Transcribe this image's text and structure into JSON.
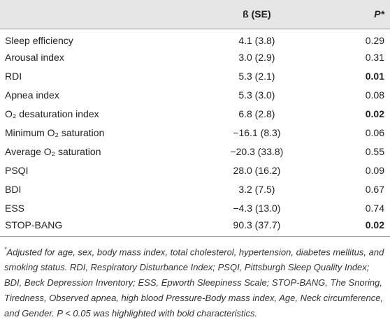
{
  "table": {
    "header": {
      "estimate": "ß (SE)",
      "p": "P*"
    },
    "rows": [
      {
        "label": "Sleep efficiency",
        "estimate": "4.1 (3.8)",
        "p": "0.29",
        "bold": false
      },
      {
        "label": "Arousal index",
        "estimate": "3.0 (2.9)",
        "p": "0.31",
        "bold": false
      },
      {
        "label": "RDI",
        "estimate": "5.3 (2.1)",
        "p": "0.01",
        "bold": true
      },
      {
        "label": "Apnea index",
        "estimate": "5.3 (3.0)",
        "p": "0.08",
        "bold": false
      },
      {
        "label": "O₂ desaturation index",
        "estimate": "6.8 (2.8)",
        "p": "0.02",
        "bold": true
      },
      {
        "label": "Minimum O₂ saturation",
        "estimate": "−16.1 (8.3)",
        "p": "0.06",
        "bold": false
      },
      {
        "label": "Average O₂ saturation",
        "estimate": "−20.3 (33.8)",
        "p": "0.55",
        "bold": false
      },
      {
        "label": "PSQI",
        "estimate": "28.0 (16.2)",
        "p": "0.09",
        "bold": false
      },
      {
        "label": "BDI",
        "estimate": "3.2 (7.5)",
        "p": "0.67",
        "bold": false
      },
      {
        "label": "ESS",
        "estimate": "−4.3 (13.0)",
        "p": "0.74",
        "bold": false
      },
      {
        "label": "STOP-BANG",
        "estimate": "90.3 (37.7)",
        "p": "0.02",
        "bold": true
      }
    ],
    "footnote": {
      "marker": "*",
      "text": "Adjusted for age, sex, body mass index, total cholesterol, hypertension, diabetes mellitus, and smoking status. RDI, Respiratory Disturbance Index; PSQI, Pittsburgh Sleep Quality Index; BDI, Beck Depression Inventory; ESS, Epworth Sleepiness Scale; STOP-BANG, The Snoring, Tiredness, Observed apnea, high blood Pressure-Body mass index, Age, Neck circumference, and Gender. P < 0.05 was highlighted with bold characteristics."
    }
  }
}
